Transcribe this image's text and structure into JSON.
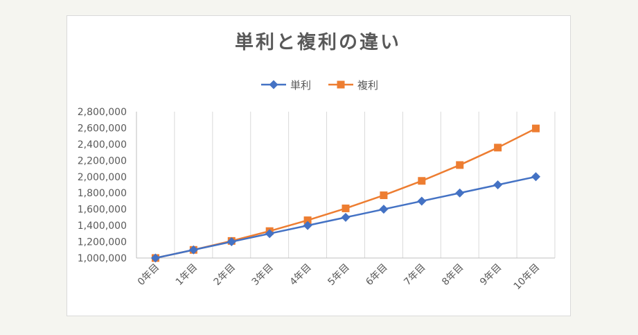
{
  "chart_data": {
    "type": "line",
    "title": "単利と複利の違い",
    "categories": [
      "0年目",
      "1年目",
      "2年目",
      "3年目",
      "4年目",
      "5年目",
      "6年目",
      "7年目",
      "8年目",
      "9年目",
      "10年目"
    ],
    "series": [
      {
        "name": "単利",
        "color": "#4472c4",
        "marker": "diamond",
        "values": [
          1000000,
          1100000,
          1200000,
          1300000,
          1400000,
          1500000,
          1600000,
          1700000,
          1800000,
          1900000,
          2000000
        ]
      },
      {
        "name": "複利",
        "color": "#ed7d31",
        "marker": "square",
        "values": [
          1000000,
          1100000,
          1210000,
          1331000,
          1464100,
          1610510,
          1771561,
          1948717,
          2143589,
          2357948,
          2593742
        ]
      }
    ],
    "ylim": [
      1000000,
      2800000
    ],
    "yticks": [
      "1,000,000",
      "1,200,000",
      "1,400,000",
      "1,600,000",
      "1,800,000",
      "2,000,000",
      "2,200,000",
      "2,400,000",
      "2,600,000",
      "2,800,000"
    ],
    "grid": "vertical",
    "legend": "top"
  }
}
